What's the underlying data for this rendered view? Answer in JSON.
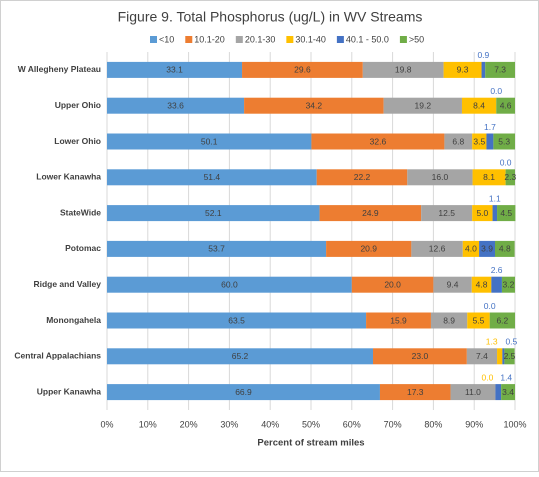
{
  "chart_data": {
    "type": "stacked-bar",
    "orientation": "horizontal",
    "title": "Figure 9. Total Phosphorus (ug/L) in WV Streams",
    "x_label": "Percent of stream miles",
    "categories": [
      "W Allegheny Plateau",
      "Upper Ohio",
      "Lower Ohio",
      "Lower Kanawha",
      "StateWide",
      "Potomac",
      "Ridge and Valley",
      "Monongahela",
      "Central Appalachians",
      "Upper Kanawha"
    ],
    "series": [
      {
        "name": "<10",
        "color": "#5b9bd5",
        "values": [
          33.1,
          33.6,
          50.1,
          51.4,
          52.1,
          53.7,
          60.0,
          63.5,
          65.2,
          66.9
        ],
        "value_labels": [
          "33.1",
          "33.6",
          "50.1",
          "51.4",
          "52.1",
          "53.7",
          "60.0",
          "63.5",
          "65.2",
          "66.9"
        ]
      },
      {
        "name": "10.1-20",
        "color": "#ed7d31",
        "values": [
          29.6,
          34.2,
          32.6,
          22.2,
          24.9,
          20.9,
          20.0,
          15.9,
          23.0,
          17.3
        ],
        "value_labels": [
          "29.6",
          "34.2",
          "32.6",
          "22.2",
          "24.9",
          "20.9",
          "20.0",
          "15.9",
          "23.0",
          "17.3"
        ]
      },
      {
        "name": "20.1-30",
        "color": "#a5a5a5",
        "values": [
          19.8,
          19.2,
          6.8,
          16.0,
          12.5,
          12.6,
          9.4,
          8.9,
          7.4,
          11.0
        ],
        "value_labels": [
          "19.8",
          "19.2",
          "6.8",
          "16.0",
          "12.5",
          "12.6",
          "9.4",
          "8.9",
          "7.4",
          "11.0"
        ]
      },
      {
        "name": "30.1-40",
        "color": "#ffc000",
        "values": [
          9.3,
          8.4,
          3.5,
          8.1,
          5.0,
          4.0,
          4.8,
          5.5,
          1.3,
          0.0
        ],
        "value_labels": [
          "9.3",
          "8.4",
          "3.5",
          "8.1",
          "5.0",
          "4.0",
          "4.8",
          "5.5",
          "1.3",
          "0.0"
        ]
      },
      {
        "name": "40.1 - 50.0",
        "color": "#4472c4",
        "values": [
          0.9,
          0.0,
          1.7,
          0.0,
          1.1,
          3.9,
          2.6,
          0.0,
          0.5,
          1.4
        ],
        "value_labels": [
          "0.9",
          "0.0",
          "1.7",
          "0.0",
          "1.1",
          "3.9",
          "2.6",
          "0.0",
          "0.5",
          "1.4"
        ]
      },
      {
        "name": ">50",
        "color": "#70ad47",
        "values": [
          7.3,
          4.6,
          5.3,
          2.3,
          4.5,
          4.8,
          3.2,
          6.2,
          2.5,
          3.4
        ],
        "value_labels": [
          "7.3",
          "4.6",
          "5.3",
          "2.3",
          "4.5",
          "4.8",
          "3.2",
          "6.2",
          "2.5",
          "3.4"
        ]
      }
    ],
    "xlim": [
      0,
      100
    ],
    "xticks": [
      {
        "value": 0,
        "label": "0%"
      },
      {
        "value": 10,
        "label": "10%"
      },
      {
        "value": 20,
        "label": "20%"
      },
      {
        "value": 30,
        "label": "30%"
      },
      {
        "value": 40,
        "label": "40%"
      },
      {
        "value": 50,
        "label": "50%"
      },
      {
        "value": 60,
        "label": "60%"
      },
      {
        "value": 70,
        "label": "70%"
      },
      {
        "value": 80,
        "label": "80%"
      },
      {
        "value": 90,
        "label": "90%"
      },
      {
        "value": 100,
        "label": "100%"
      }
    ],
    "grid": true,
    "legend": "top"
  }
}
